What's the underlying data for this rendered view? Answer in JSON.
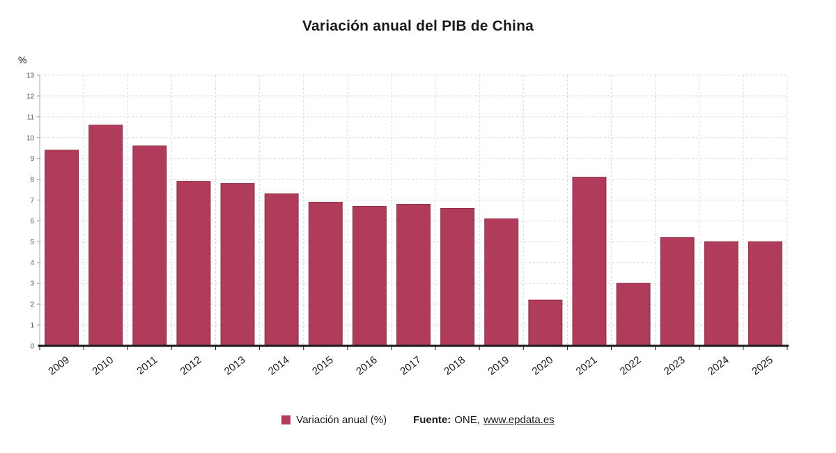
{
  "chart_data": {
    "type": "bar",
    "title": "Variación anual del PIB de China",
    "ylabel": "%",
    "ylim": [
      0,
      13
    ],
    "ytick_step": 1,
    "grid": "dashed",
    "legend_position": "bottom-center",
    "categories": [
      "2009",
      "2010",
      "2011",
      "2012",
      "2013",
      "2014",
      "2015",
      "2016",
      "2017",
      "2018",
      "2019",
      "2020",
      "2021",
      "2022",
      "2023",
      "2024",
      "2025"
    ],
    "values": [
      9.4,
      10.6,
      9.6,
      7.9,
      7.8,
      7.3,
      6.9,
      6.7,
      6.8,
      6.6,
      6.1,
      2.2,
      8.1,
      3.0,
      5.2,
      5.0,
      5.0
    ],
    "series_name": "Variación anual (%)",
    "bar_color": "#b13b5a",
    "bar_border_color": "#8f2e47"
  },
  "legend": {
    "label": "Variación anual (%)"
  },
  "source": {
    "prefix": "Fuente:",
    "text": "ONE,",
    "link": "www.epdata.es"
  }
}
